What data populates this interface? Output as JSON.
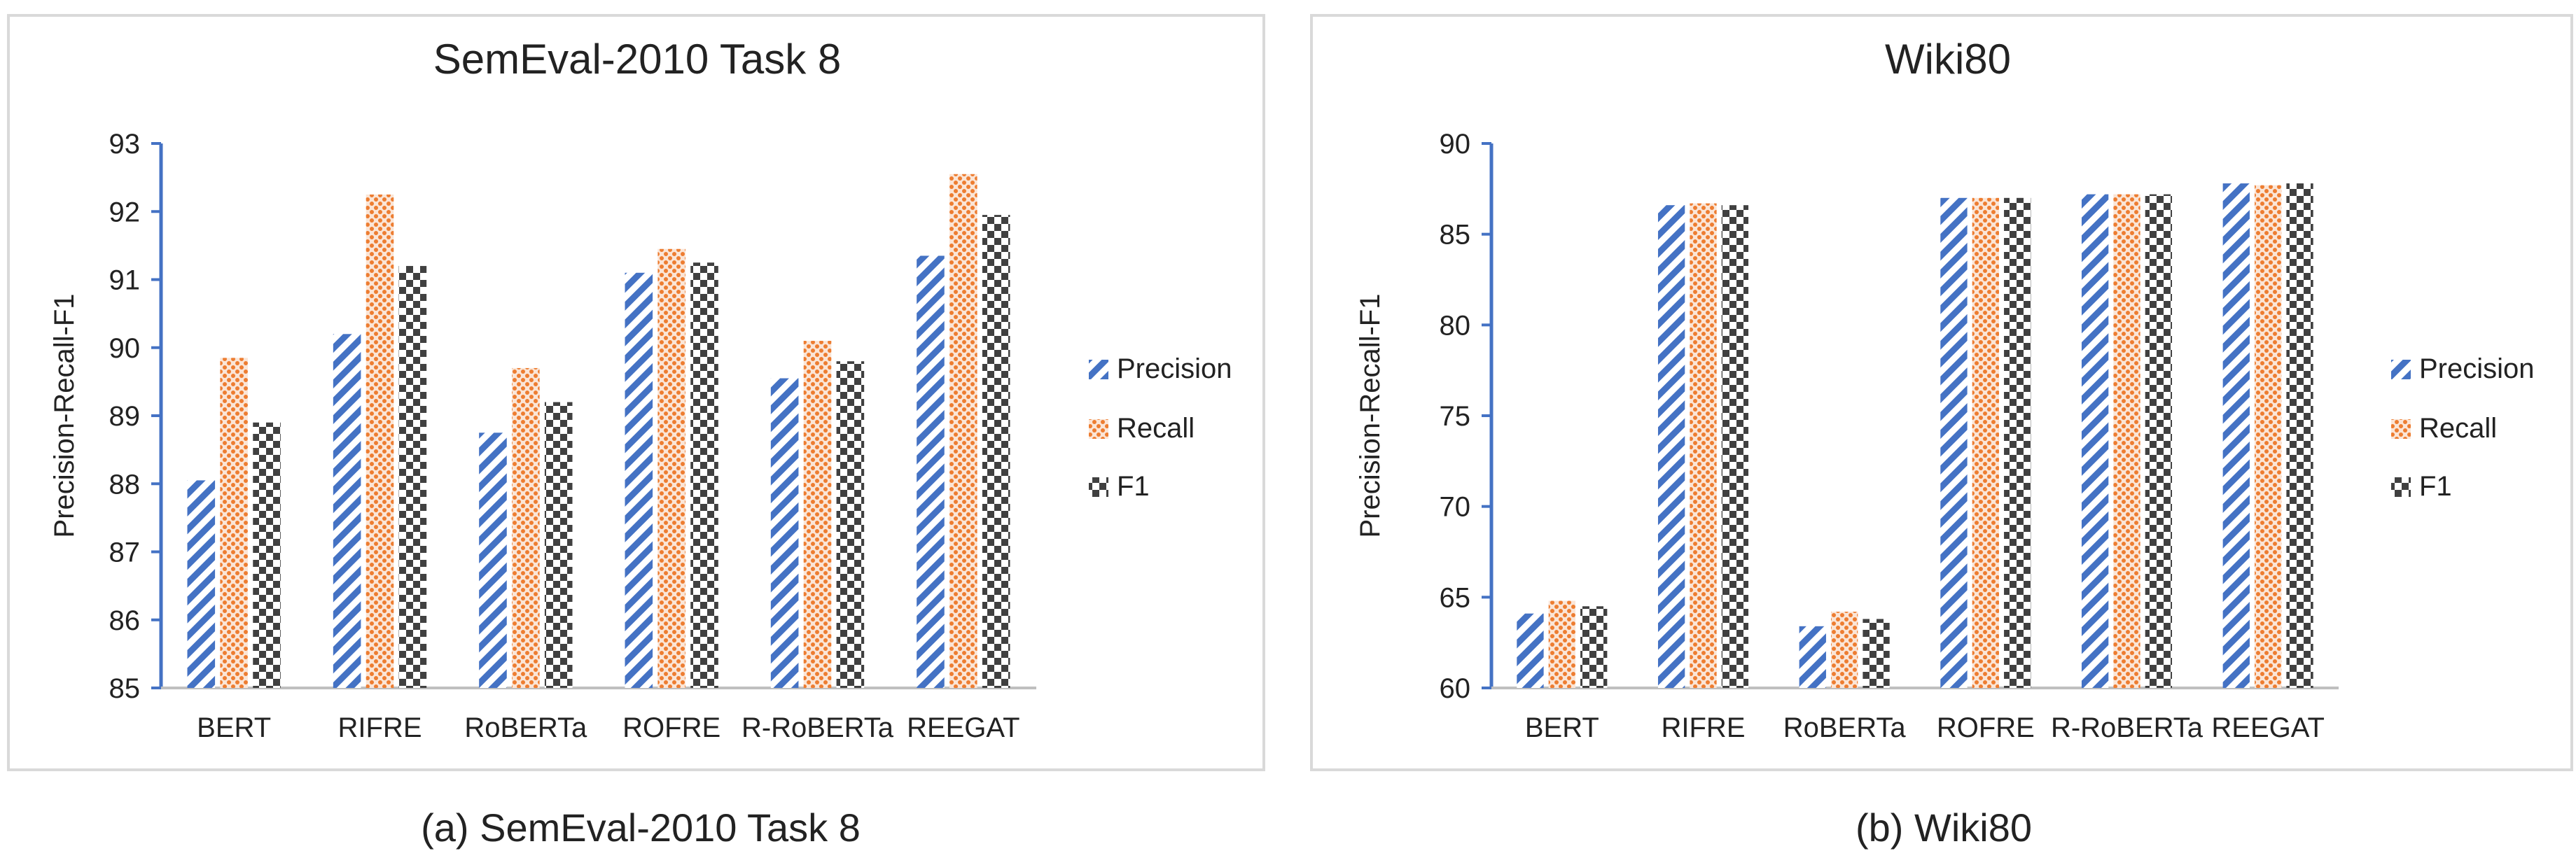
{
  "colors": {
    "precision": "#4472c4",
    "recall": "#ed7d31",
    "f1": "#404040",
    "axis": "#4472c4",
    "text": "#222222",
    "frame": "#d9d9d9"
  },
  "captions": [
    "(a) SemEval-2010 Task 8",
    "(b) Wiki80"
  ],
  "chart_data": [
    {
      "type": "bar",
      "title": "SemEval-2010 Task 8",
      "xlabel": "",
      "ylabel": "Precision-Recall-F1",
      "ylim": [
        85,
        93
      ],
      "yticks": [
        85,
        86,
        87,
        88,
        89,
        90,
        91,
        92,
        93
      ],
      "grid": false,
      "legend": "right",
      "categories": [
        "BERT",
        "RIFRE",
        "RoBERTa",
        "ROFRE",
        "R-RoBERTa",
        "REEGAT"
      ],
      "series": [
        {
          "name": "Precision",
          "values": [
            88.05,
            90.2,
            88.75,
            91.1,
            89.55,
            91.35
          ]
        },
        {
          "name": "Recall",
          "values": [
            89.85,
            92.25,
            89.7,
            91.45,
            90.1,
            92.55
          ]
        },
        {
          "name": "F1",
          "values": [
            88.9,
            91.2,
            89.2,
            91.25,
            89.8,
            91.95
          ]
        }
      ]
    },
    {
      "type": "bar",
      "title": "Wiki80",
      "xlabel": "",
      "ylabel": "Precision-Recall-F1",
      "ylim": [
        60,
        90
      ],
      "yticks": [
        60,
        65,
        70,
        75,
        80,
        85,
        90
      ],
      "grid": false,
      "legend": "right",
      "categories": [
        "BERT",
        "RIFRE",
        "RoBERTa",
        "ROFRE",
        "R-RoBERTa",
        "REEGAT"
      ],
      "series": [
        {
          "name": "Precision",
          "values": [
            64.1,
            86.6,
            63.4,
            87.0,
            87.2,
            87.8
          ]
        },
        {
          "name": "Recall",
          "values": [
            64.8,
            86.7,
            64.2,
            87.0,
            87.2,
            87.7
          ]
        },
        {
          "name": "F1",
          "values": [
            64.5,
            86.6,
            63.8,
            87.0,
            87.2,
            87.8
          ]
        }
      ]
    }
  ]
}
